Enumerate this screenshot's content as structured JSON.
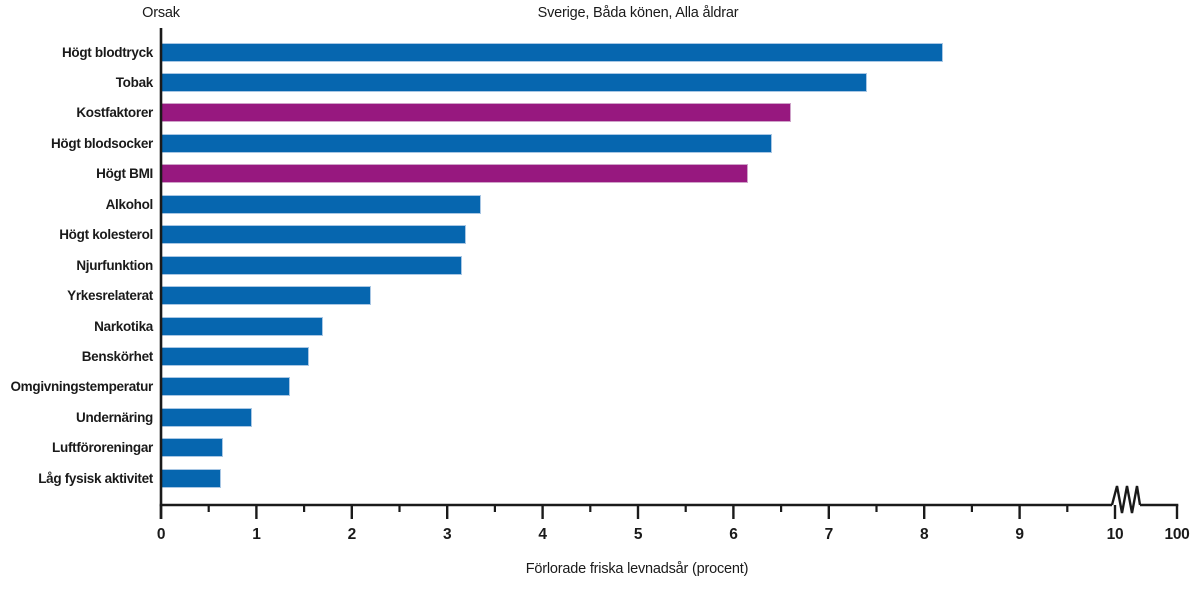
{
  "header": {
    "y_axis_title": "Orsak",
    "title": "Sverige, Båda könen, Alla åldrar"
  },
  "chart_data": {
    "type": "bar",
    "orientation": "horizontal",
    "title": "Sverige, Båda könen, Alla åldrar",
    "y_axis_title": "Orsak",
    "xlabel": "Förlorade friska levnadsår (procent)",
    "categories": [
      "Högt blodtryck",
      "Tobak",
      "Kostfaktorer",
      "Högt blodsocker",
      "Högt BMI",
      "Alkohol",
      "Högt kolesterol",
      "Njurfunktion",
      "Yrkesrelaterat",
      "Narkotika",
      "Benskörhet",
      "Omgivningstemperatur",
      "Undernäring",
      "Luftföroreningar",
      "Låg fysisk aktivitet"
    ],
    "values": [
      8.2,
      7.4,
      6.6,
      6.4,
      6.15,
      3.35,
      3.2,
      3.15,
      2.2,
      1.7,
      1.55,
      1.35,
      0.95,
      0.65,
      0.63
    ],
    "bar_color_keys": [
      "blue",
      "blue",
      "magenta",
      "blue",
      "magenta",
      "blue",
      "blue",
      "blue",
      "blue",
      "blue",
      "blue",
      "blue",
      "blue",
      "blue",
      "blue"
    ],
    "palette": {
      "blue": "#0666af",
      "blue_border": "#a9c7e4",
      "magenta": "#97187f",
      "magenta_border": "#cfa3c9",
      "axis": "#1a1a1a"
    },
    "x_axis": {
      "major_tick_values": [
        0,
        1,
        2,
        3,
        4,
        5,
        6,
        7,
        8,
        9,
        10
      ],
      "major_tick_labels": [
        "0",
        "1",
        "2",
        "3",
        "4",
        "5",
        "6",
        "7",
        "8",
        "9",
        "10"
      ],
      "minor_tick_values": [
        0.5,
        1.5,
        2.5,
        3.5,
        4.5,
        5.5,
        6.5,
        7.5,
        8.5,
        9.5
      ],
      "axis_break_after": 10,
      "end_tick_label": "100",
      "grid": "off",
      "legend": "none"
    }
  }
}
